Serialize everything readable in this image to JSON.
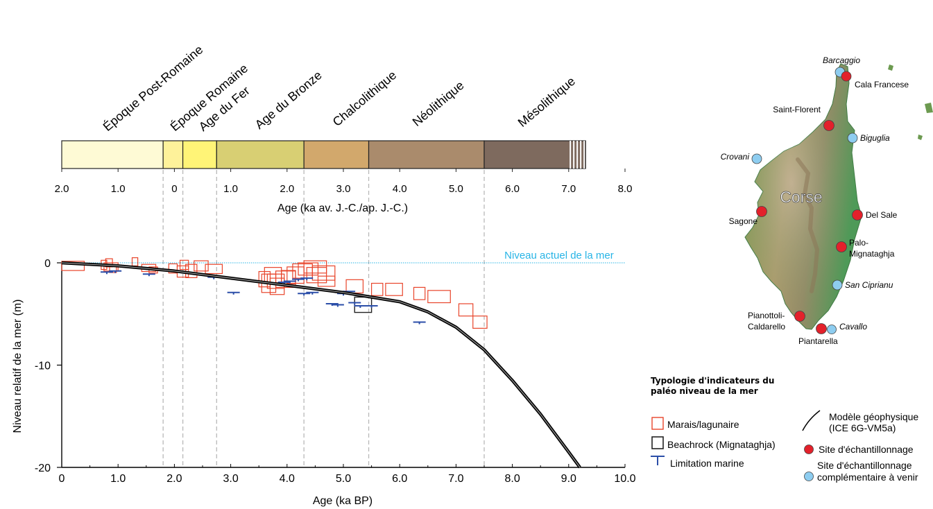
{
  "chart_data": {
    "type": "scatter",
    "periods": [
      {
        "label": "Époque Post-Romaine",
        "start": -2.0,
        "end": -0.2,
        "color": "#fefad5"
      },
      {
        "label": "Époque Romaine",
        "start": -0.2,
        "end": 0.15,
        "color": "#fef29a"
      },
      {
        "label": "Age du Fer",
        "start": 0.15,
        "end": 0.75,
        "color": "#fff477"
      },
      {
        "label": "Age du Bronze",
        "start": 0.75,
        "end": 2.3,
        "color": "#d8cf73"
      },
      {
        "label": "Chalcolithique",
        "start": 2.3,
        "end": 3.45,
        "color": "#d2a86c"
      },
      {
        "label": "Néolithique",
        "start": 3.45,
        "end": 5.5,
        "color": "#aa8b6c"
      },
      {
        "label": "Mésolithique",
        "start": 5.5,
        "end": 7.3,
        "color": "#7e6a5e"
      }
    ],
    "top_axis": {
      "label": "Age (ka av. J.-C./ap. J.-C.)",
      "ticks": [
        {
          "v": -2.0,
          "t": "2.0"
        },
        {
          "v": -1.0,
          "t": "1.0"
        },
        {
          "v": 0,
          "t": "0"
        },
        {
          "v": 1.0,
          "t": "1.0"
        },
        {
          "v": 2.0,
          "t": "2.0"
        },
        {
          "v": 3.0,
          "t": "3.0"
        },
        {
          "v": 4.0,
          "t": "4.0"
        },
        {
          "v": 5.0,
          "t": "5.0"
        },
        {
          "v": 6.0,
          "t": "6.0"
        },
        {
          "v": 7.0,
          "t": "7.0"
        },
        {
          "v": 8.0,
          "t": "8.0"
        }
      ]
    },
    "xlabel": "Age (ka BP)",
    "ylabel": "Niveau relatif de la mer (m)",
    "xlim": [
      0,
      10
    ],
    "ylim": [
      -20,
      0
    ],
    "x_ticks": [
      {
        "v": 0,
        "t": "0"
      },
      {
        "v": 1,
        "t": "1.0"
      },
      {
        "v": 2,
        "t": "2.0"
      },
      {
        "v": 3,
        "t": "3.0"
      },
      {
        "v": 4,
        "t": "4.0"
      },
      {
        "v": 5,
        "t": "5.0"
      },
      {
        "v": 6,
        "t": "6.0"
      },
      {
        "v": 7,
        "t": "7.0"
      },
      {
        "v": 8,
        "t": "8.0"
      },
      {
        "v": 9,
        "t": "9.0"
      },
      {
        "v": 10,
        "t": "10.0"
      }
    ],
    "y_ticks": [
      {
        "v": 0,
        "t": "0"
      },
      {
        "v": -10,
        "t": "-10"
      },
      {
        "v": -20,
        "t": "-20"
      }
    ],
    "period_boundaries_bp": [
      1.8,
      2.15,
      2.75,
      4.3,
      5.45,
      7.5
    ],
    "sea_level_label": "Niveau actuel de la mer",
    "model_curve": [
      [
        0,
        0
      ],
      [
        1,
        -0.3
      ],
      [
        2,
        -0.8
      ],
      [
        3,
        -1.5
      ],
      [
        4,
        -2.2
      ],
      [
        5,
        -2.9
      ],
      [
        6,
        -3.8
      ],
      [
        6.5,
        -4.8
      ],
      [
        7,
        -6.3
      ],
      [
        7.5,
        -8.5
      ],
      [
        8,
        -11.5
      ],
      [
        8.5,
        -14.8
      ],
      [
        9,
        -18.5
      ],
      [
        9.2,
        -20
      ]
    ],
    "marsh_boxes": [
      [
        0,
        -0.3,
        0.4,
        0.9
      ],
      [
        0.7,
        -0.2,
        0.1,
        0.9
      ],
      [
        0.78,
        0,
        0.12,
        0.8
      ],
      [
        0.75,
        -0.4,
        0.25,
        0.8
      ],
      [
        0.85,
        -0.6,
        0.12,
        0.7
      ],
      [
        1.25,
        0.1,
        0.1,
        0.8
      ],
      [
        1.42,
        -0.5,
        0.25,
        0.7
      ],
      [
        1.55,
        -0.7,
        0.15,
        0.6
      ],
      [
        1.9,
        -0.55,
        0.15,
        0.9
      ],
      [
        2.05,
        -0.85,
        0.2,
        1.1
      ],
      [
        2.1,
        -0.2,
        0.15,
        0.9
      ],
      [
        2.2,
        -0.8,
        0.2,
        1.3
      ],
      [
        2.35,
        -0.3,
        0.25,
        1.0
      ],
      [
        2.55,
        -0.6,
        0.3,
        0.9
      ],
      [
        3.5,
        -1.6,
        0.2,
        1.5
      ],
      [
        3.55,
        -2.0,
        0.25,
        1.8
      ],
      [
        3.6,
        -1.2,
        0.3,
        1.5
      ],
      [
        3.65,
        -1.8,
        0.3,
        1.4
      ],
      [
        3.7,
        -2.3,
        0.25,
        1.6
      ],
      [
        3.8,
        -1.6,
        0.35,
        1.6
      ],
      [
        3.9,
        -1.4,
        0.25,
        1.3
      ],
      [
        4.0,
        -1.2,
        0.3,
        1.6
      ],
      [
        4.1,
        -0.8,
        0.35,
        1.4
      ],
      [
        4.2,
        -0.6,
        0.35,
        1.2
      ],
      [
        4.3,
        -0.4,
        0.4,
        1.2
      ],
      [
        4.35,
        -1.2,
        0.35,
        1.5
      ],
      [
        4.45,
        -1.0,
        0.4,
        1.4
      ],
      [
        4.55,
        -1.8,
        0.3,
        1.0
      ],
      [
        5.05,
        -2.3,
        0.3,
        1.3
      ],
      [
        5.5,
        -2.6,
        0.2,
        1.2
      ],
      [
        5.75,
        -2.6,
        0.3,
        1.2
      ],
      [
        6.25,
        -3.0,
        0.2,
        1.2
      ],
      [
        6.5,
        -3.3,
        0.4,
        1.2
      ],
      [
        7.05,
        -4.6,
        0.25,
        1.2
      ],
      [
        7.3,
        -5.8,
        0.25,
        1.2
      ]
    ],
    "beachrock_boxes": [
      [
        5.2,
        -4.1,
        0.3,
        1.5
      ]
    ],
    "marine_limits": [
      [
        0.8,
        -0.9
      ],
      [
        0.95,
        -0.8
      ],
      [
        1.55,
        -1.1
      ],
      [
        2.7,
        -1.4
      ],
      [
        3.05,
        -2.9
      ],
      [
        3.95,
        -1.9
      ],
      [
        4.05,
        -1.8
      ],
      [
        4.2,
        -1.6
      ],
      [
        4.35,
        -1.5
      ],
      [
        4.3,
        -3.0
      ],
      [
        4.45,
        -2.9
      ],
      [
        4.8,
        -4.0
      ],
      [
        4.9,
        -4.1
      ],
      [
        5.0,
        -3.0
      ],
      [
        5.1,
        -2.8
      ],
      [
        5.2,
        -3.9
      ],
      [
        5.3,
        -4.2
      ],
      [
        5.5,
        -4.2
      ],
      [
        6.35,
        -5.8
      ]
    ]
  },
  "legend": {
    "title_line1": "Typologie d'indicateurs du",
    "title_line2": "paléo niveau de la mer",
    "marsh": "Marais/lagunaire",
    "beachrock": "Beachrock (Mignataghja)",
    "marine_limit": "Limitation marine",
    "model_line1": "Modèle géophysique",
    "model_line2": "(ICE 6G-VM5a)",
    "site": "Site d'échantillonnage",
    "future_site_line1": "Site d'échantillonnage",
    "future_site_line2": "complémentaire à venir"
  },
  "map": {
    "island_label": "Corse",
    "sites": [
      {
        "name": "Cala Francese",
        "kind": "sampled"
      },
      {
        "name": "Saint-Florent",
        "kind": "sampled"
      },
      {
        "name": "Sagone",
        "kind": "sampled"
      },
      {
        "name": "Del Sale",
        "kind": "sampled"
      },
      {
        "name_line1": "Palo-",
        "name_line2": "Mignataghja",
        "kind": "sampled"
      },
      {
        "name_line1": "Pianottoli-",
        "name_line2": "Caldarello",
        "kind": "sampled"
      },
      {
        "name": "Piantarella",
        "kind": "sampled"
      },
      {
        "name": "Barcaggio",
        "kind": "future"
      },
      {
        "name": "Biguglia",
        "kind": "future"
      },
      {
        "name": "Crovani",
        "kind": "future"
      },
      {
        "name": "San Ciprianu",
        "kind": "future"
      },
      {
        "name": "Cavallo",
        "kind": "future"
      }
    ]
  },
  "colors": {
    "marsh": "#e8442a",
    "beachrock": "#222222",
    "marine_limit": "#2b4ea8",
    "model": "#000000",
    "sea_level": "#27b4e6",
    "site_sampled": "#e3212b",
    "site_future": "#8ecdf0",
    "relief_low": "#4f9a4a",
    "relief_high": "#b9a07a"
  }
}
